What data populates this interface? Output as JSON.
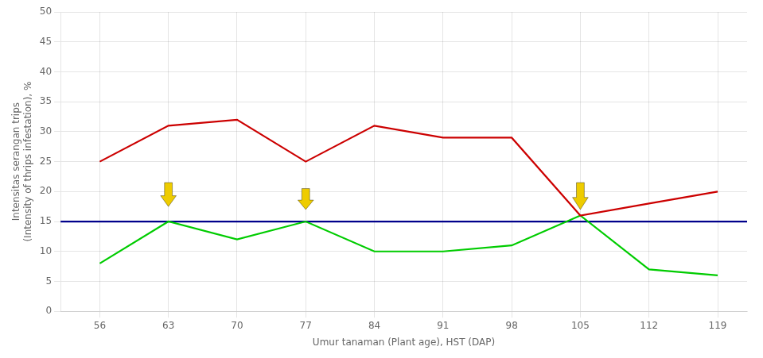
{
  "chart_data": {
    "type": "line",
    "x_label": "Umur tanaman (Plant age), HST (DAP)",
    "y_label": [
      "Intensitas serangan trips",
      "(Intensity of thrips infestation), %"
    ],
    "x": [
      56,
      63,
      70,
      77,
      84,
      91,
      98,
      105,
      112,
      119
    ],
    "series": [
      {
        "color": "#cc0000",
        "values": [
          25,
          31,
          32,
          25,
          31,
          29,
          29,
          16,
          18,
          20
        ]
      },
      {
        "color": "#00cc00",
        "values": [
          8,
          15,
          12,
          15,
          10,
          10,
          11,
          16,
          7,
          6
        ]
      }
    ],
    "hlines": [
      {
        "value": 15,
        "color": "#00008b"
      }
    ],
    "arrows": {
      "x": [
        63,
        77,
        105
      ],
      "top": [
        21.5,
        20.5,
        21.5
      ],
      "bottom": [
        17.5,
        17.0,
        17.0
      ],
      "color": "#eecc00"
    },
    "xlim": [
      52,
      122
    ],
    "xticks": [
      56,
      63,
      70,
      77,
      84,
      91,
      98,
      105,
      112,
      119
    ],
    "ylim": [
      0,
      50
    ],
    "yticks": [
      0,
      5,
      10,
      15,
      20,
      25,
      30,
      35,
      40,
      45,
      50
    ],
    "grid": true
  }
}
